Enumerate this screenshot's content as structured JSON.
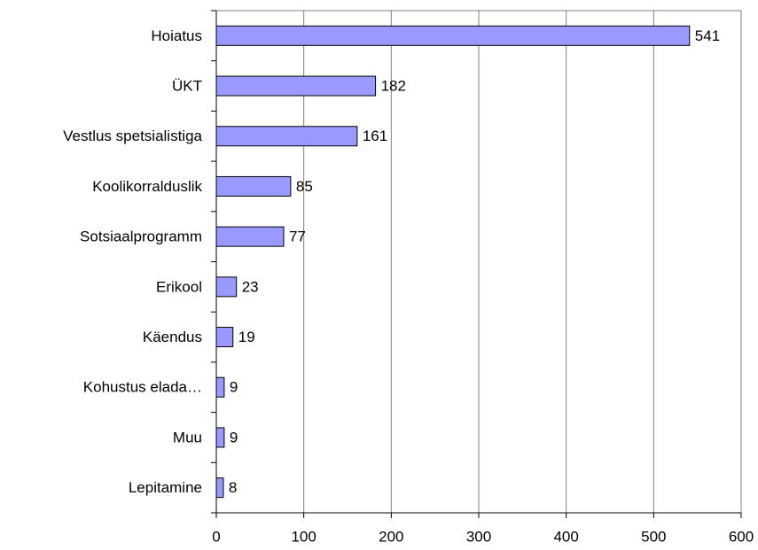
{
  "chart_data": {
    "type": "bar",
    "orientation": "horizontal",
    "categories": [
      "Hoiatus",
      "ÜKT",
      "Vestlus spetsialistiga",
      "Koolikorralduslik",
      "Sotsiaalprogramm",
      "Erikool",
      "Käendus",
      "Kohustus elada…",
      "Muu",
      "Lepitamine"
    ],
    "values": [
      541,
      182,
      161,
      85,
      77,
      23,
      19,
      9,
      9,
      8
    ],
    "color": "#9999ff",
    "xlim": [
      0,
      600
    ],
    "xticks": [
      0,
      100,
      200,
      300,
      400,
      500,
      600
    ],
    "grid": true
  }
}
